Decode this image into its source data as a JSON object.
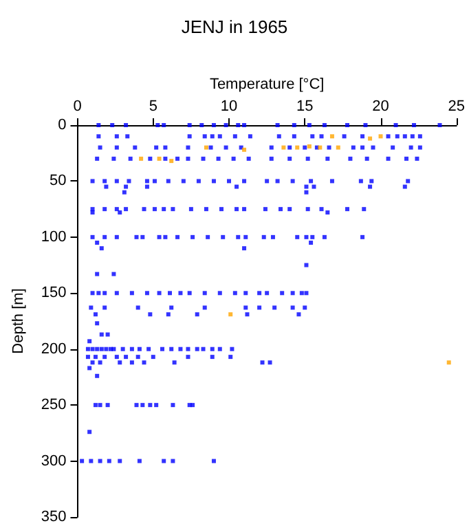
{
  "chart_data": {
    "type": "scatter",
    "title": "JENJ in 1965",
    "xlabel": "Temperature [°C]",
    "ylabel": "Depth [m]",
    "xlim": [
      0,
      25
    ],
    "xticks": [
      0,
      5,
      10,
      15,
      20,
      25
    ],
    "ylim": [
      350,
      0
    ],
    "yticks": [
      0,
      50,
      100,
      150,
      200,
      250,
      300,
      350
    ],
    "grid": false,
    "marker": "square",
    "series": [
      {
        "color": "#0000ff",
        "x": [
          1.4,
          2.3,
          3.2,
          5.3,
          5.7,
          7.4,
          8.2,
          9.0,
          9.8,
          10.6,
          11.0,
          13.2,
          14.3,
          15.3,
          16.3,
          17.8,
          19.0,
          21.0,
          22.2,
          23.9,
          1.4,
          2.6,
          3.3,
          7.4,
          8.4,
          9.4,
          10.4,
          11.4,
          13.3,
          14.3,
          15.5,
          16.1,
          17.6,
          18.8,
          20.5,
          21.1,
          21.6,
          22.1,
          22.6,
          8.9,
          1.5,
          2.6,
          3.8,
          5.2,
          5.8,
          7.3,
          8.8,
          9.8,
          10.8,
          12.8,
          14.0,
          15.0,
          15.8,
          16.6,
          18.2,
          18.8,
          19.5,
          20.8,
          22.0,
          22.6,
          1.3,
          2.4,
          3.5,
          4.8,
          5.8,
          6.6,
          7.3,
          8.3,
          9.3,
          10.3,
          11.3,
          12.8,
          14.0,
          15.2,
          16.5,
          18.0,
          19.1,
          20.5,
          21.7,
          22.4,
          1.0,
          1.8,
          2.6,
          3.4,
          4.6,
          5.1,
          6.0,
          7.0,
          8.0,
          9.0,
          10.0,
          11.0,
          12.5,
          13.2,
          14.2,
          15.4,
          16.8,
          18.7,
          19.4,
          21.8,
          1.9,
          3.2,
          4.6,
          10.5,
          15.1,
          15.6,
          19.3,
          21.6,
          3.1,
          15.1,
          1.0,
          1.8,
          2.6,
          3.2,
          4.4,
          5.1,
          5.7,
          6.3,
          7.5,
          8.5,
          9.5,
          10.5,
          11.0,
          12.4,
          13.4,
          14.0,
          15.2,
          16.1,
          17.8,
          18.9,
          1.0,
          1.8,
          2.6,
          3.9,
          4.3,
          5.4,
          5.8,
          6.6,
          7.6,
          8.6,
          9.6,
          10.6,
          11.1,
          12.3,
          12.9,
          14.5,
          15.1,
          15.5,
          16.3,
          18.8,
          1.3,
          15.4,
          1.6,
          11.0,
          15.1,
          1.3,
          2.4,
          1.0,
          2.8,
          16.5,
          1.0,
          1.4,
          1.8,
          2.6,
          3.6,
          4.6,
          5.4,
          6.1,
          6.8,
          7.4,
          8.4,
          9.4,
          10.4,
          11.1,
          12.0,
          12.5,
          13.5,
          14.2,
          14.8,
          15.1,
          0.9,
          1.8,
          4.0,
          6.2,
          8.4,
          11.1,
          12.0,
          13.0,
          14.2,
          15.0,
          1.2,
          4.8,
          6.0,
          7.9,
          11.2,
          14.6,
          1.3,
          1.6,
          2.0,
          0.8,
          0.7,
          1.0,
          1.3,
          1.6,
          1.9,
          2.2,
          2.4,
          3.0,
          3.6,
          4.1,
          4.7,
          5.6,
          6.2,
          6.8,
          7.3,
          7.9,
          8.3,
          8.9,
          9.4,
          10.2,
          0.7,
          1.2,
          1.8,
          2.6,
          3.2,
          4.0,
          5.0,
          7.3,
          8.9,
          10.1,
          1.0,
          1.5,
          2.8,
          3.6,
          4.4,
          6.4,
          12.2,
          12.7,
          0.8,
          1.3,
          1.2,
          1.5,
          2.0,
          3.9,
          4.3,
          4.8,
          5.2,
          6.3,
          7.4,
          7.6,
          0.3,
          0.9,
          1.5,
          2.1,
          2.8,
          4.1,
          5.7,
          6.3,
          9.0,
          0.8
        ],
        "values": [
          0,
          0,
          0,
          0,
          0,
          0,
          0,
          0,
          0,
          0,
          0,
          0,
          0,
          0,
          0,
          0,
          0,
          0,
          0,
          0,
          10,
          10,
          10,
          10,
          10,
          10,
          10,
          10,
          10,
          10,
          10,
          10,
          10,
          10,
          10,
          10,
          10,
          10,
          10,
          10,
          20,
          20,
          20,
          20,
          20,
          20,
          20,
          20,
          20,
          20,
          20,
          20,
          20,
          20,
          20,
          20,
          20,
          20,
          20,
          20,
          30,
          30,
          30,
          30,
          30,
          30,
          30,
          30,
          30,
          30,
          30,
          30,
          30,
          30,
          30,
          30,
          30,
          30,
          30,
          30,
          50,
          50,
          50,
          50,
          50,
          50,
          50,
          50,
          50,
          50,
          50,
          50,
          50,
          50,
          50,
          50,
          50,
          50,
          50,
          50,
          55,
          55,
          55,
          55,
          55,
          55,
          55,
          55,
          60,
          60,
          75,
          75,
          75,
          75,
          75,
          75,
          75,
          75,
          75,
          75,
          75,
          75,
          75,
          75,
          75,
          75,
          75,
          75,
          75,
          75,
          100,
          100,
          100,
          100,
          100,
          100,
          100,
          100,
          100,
          100,
          100,
          100,
          100,
          100,
          100,
          100,
          100,
          100,
          100,
          100,
          105,
          105,
          110,
          110,
          125,
          133,
          133,
          78,
          78,
          78,
          150,
          150,
          150,
          150,
          150,
          150,
          150,
          150,
          150,
          150,
          150,
          150,
          150,
          150,
          150,
          150,
          150,
          150,
          150,
          150,
          163,
          163,
          163,
          163,
          163,
          163,
          163,
          163,
          163,
          163,
          169,
          169,
          169,
          169,
          169,
          169,
          177,
          187,
          187,
          193,
          200,
          200,
          200,
          200,
          200,
          200,
          200,
          200,
          200,
          200,
          200,
          200,
          200,
          200,
          200,
          200,
          200,
          200,
          200,
          200,
          207,
          207,
          207,
          207,
          207,
          207,
          207,
          207,
          207,
          207,
          212,
          212,
          212,
          212,
          212,
          212,
          212,
          212,
          217,
          224,
          250,
          250,
          250,
          250,
          250,
          250,
          250,
          250,
          250,
          250,
          300,
          300,
          300,
          300,
          300,
          300,
          300,
          300,
          300,
          274
        ]
      },
      {
        "color": "#ffa500",
        "x": [
          16.8,
          19.3,
          20.0,
          8.5,
          11.0,
          13.6,
          14.5,
          15.3,
          16.0,
          17.2,
          4.2,
          5.4,
          6.2,
          10.1,
          24.5
        ],
        "values": [
          10,
          12,
          10,
          20,
          22,
          20,
          20,
          19,
          20,
          20,
          30,
          30,
          32,
          169,
          212
        ]
      }
    ]
  }
}
